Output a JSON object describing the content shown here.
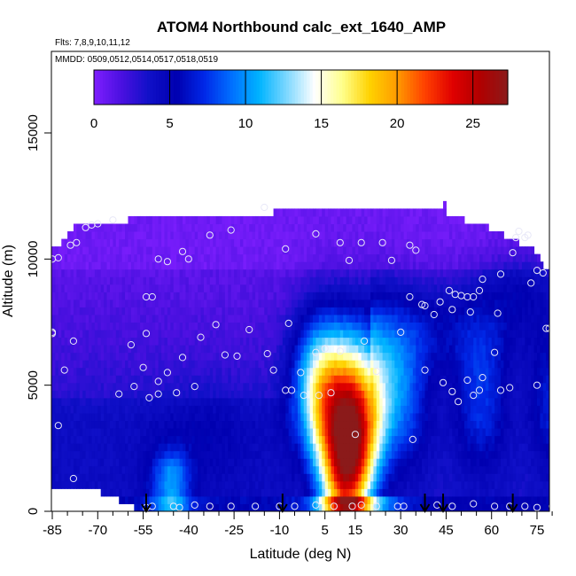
{
  "chart_data": {
    "type": "heatmap",
    "title": "ATOM4 Northbound calc_ext_1640_AMP",
    "subtitle_flights": "Flts: 7,8,9,10,11,12",
    "subtitle_dates": "MMDD: 0509,0512,0514,0517,0518,0519",
    "xlabel": "Latitude (deg N)",
    "ylabel": "Altitude (m)",
    "xlim": [
      -87,
      83
    ],
    "ylim": [
      0,
      18000
    ],
    "x_ticks": [
      -85,
      -70,
      -55,
      -40,
      -25,
      -10,
      5,
      15,
      30,
      45,
      60,
      75
    ],
    "x_tick_labels": [
      "-85",
      "-70",
      "-55",
      "-40",
      "-25",
      "-10",
      "5",
      "15",
      "30",
      "45",
      "60",
      "75"
    ],
    "y_ticks": [
      0,
      5000,
      10000,
      15000
    ],
    "y_tick_labels": [
      "0",
      "5000",
      "10000",
      "15000"
    ],
    "colorbar": {
      "min": 0,
      "max": 27.3,
      "ticks": [
        0,
        5,
        10,
        15,
        20,
        25
      ],
      "tick_labels": [
        "0",
        "5",
        "10",
        "15",
        "20",
        "25"
      ],
      "colors": [
        "#7f1fff",
        "#4a10e0",
        "#1010c8",
        "#0000b0",
        "#0028e8",
        "#0070ff",
        "#00b4ff",
        "#7fd8ff",
        "#ffffff",
        "#ffff8c",
        "#ffd200",
        "#ff9a00",
        "#ff4000",
        "#e00000",
        "#b00000",
        "#8b1a1a"
      ]
    },
    "profile_markers_lat": [
      -54,
      -9,
      38,
      44,
      67
    ],
    "grid": false,
    "legend": "colorbar-top"
  }
}
